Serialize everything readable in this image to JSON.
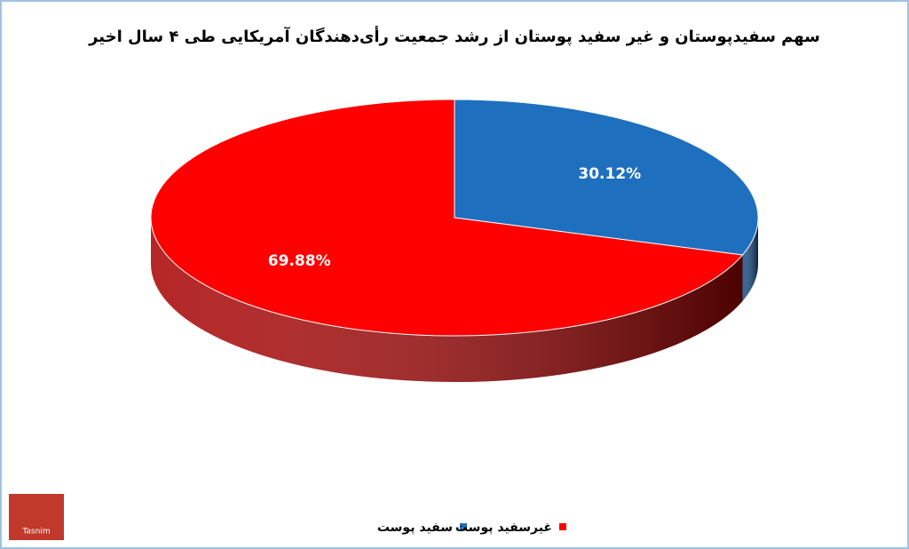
{
  "chart_data": {
    "type": "pie3d",
    "title": "سهم سفیدپوستان و غیر سفید پوستان از رشد جمعیت رأی‌دهندگان آمریکایی طی ۴ سال اخیر",
    "categories": [
      "سفید پوست",
      "غیرسفید پوست"
    ],
    "values": [
      30.12,
      69.88
    ],
    "value_labels": [
      "30.12%",
      "69.88%"
    ],
    "colors": [
      "#1f6fbf",
      "#ff0000"
    ],
    "side_colors": [
      "#124a82",
      "#a80000"
    ],
    "logo": "Tasnim"
  }
}
